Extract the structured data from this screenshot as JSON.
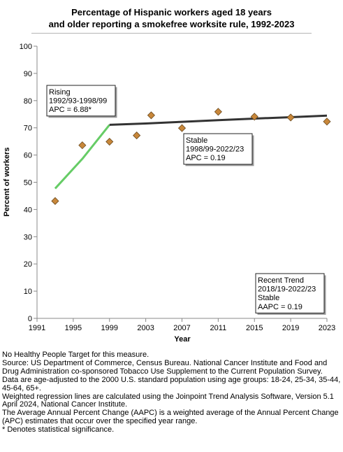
{
  "chart_data": {
    "type": "scatter",
    "title_lines": [
      "Percentage of Hispanic workers aged 18 years",
      "and older reporting a smokefree worksite rule, 1992-2023"
    ],
    "xlabel": "Year",
    "ylabel": "Percent of workers",
    "xlim": [
      1991,
      2023
    ],
    "ylim": [
      0,
      100
    ],
    "x_ticks": [
      1991,
      1995,
      1999,
      2003,
      2007,
      2011,
      2015,
      2019,
      2023
    ],
    "y_ticks": [
      0,
      10,
      20,
      30,
      40,
      50,
      60,
      70,
      80,
      90,
      100
    ],
    "grid": false,
    "points": [
      {
        "x": 1993,
        "y": 43.1
      },
      {
        "x": 1996,
        "y": 63.6
      },
      {
        "x": 1999,
        "y": 64.9
      },
      {
        "x": 2002,
        "y": 67.2
      },
      {
        "x": 2003.6,
        "y": 74.6
      },
      {
        "x": 2007,
        "y": 69.9
      },
      {
        "x": 2011,
        "y": 75.9
      },
      {
        "x": 2015,
        "y": 74.1
      },
      {
        "x": 2019,
        "y": 73.8
      },
      {
        "x": 2023,
        "y": 72.3
      }
    ],
    "trend_segments": [
      {
        "color": "#66cc66",
        "points": [
          [
            1993,
            47.7
          ],
          [
            1996,
            58.6
          ],
          [
            1999,
            71.1
          ]
        ]
      },
      {
        "color": "#333333",
        "points": [
          [
            1999,
            71.1
          ],
          [
            2003,
            71.6
          ],
          [
            2007,
            72.2
          ],
          [
            2011,
            72.8
          ],
          [
            2015,
            73.4
          ],
          [
            2019,
            73.9
          ],
          [
            2023,
            74.5
          ]
        ]
      }
    ],
    "annotations": [
      {
        "lines": [
          "Rising",
          "1992/93-1998/99",
          "APC =  6.88*"
        ]
      },
      {
        "lines": [
          "Stable",
          "1998/99-2022/23",
          "APC =  0.19"
        ]
      },
      {
        "lines": [
          "Recent Trend",
          "2018/19-2022/23",
          "Stable",
          "AAPC =  0.19"
        ]
      }
    ],
    "colors": {
      "marker_fill": "#c8873a",
      "marker_stroke": "#6b4a1e",
      "axis": "#888888"
    }
  },
  "footnotes": [
    "No Healthy People Target for this measure.",
    "Source: US Department of Commerce, Census Bureau. National Cancer Institute and Food and Drug Administration co-sponsored Tobacco Use Supplement to the Current Population Survey.",
    "Data are age-adjusted to the 2000 U.S. standard population using age groups: 18-24, 25-34, 35-44, 45-64, 65+.",
    "Weighted regression lines are calculated using the Joinpoint Trend Analysis Software, Version 5.1 April 2024, National Cancer Institute.",
    "The Average Annual Percent Change (AAPC) is a weighted average of the Annual Percent Change (APC) estimates that occur over the specified year range.",
    "* Denotes statistical significance."
  ]
}
